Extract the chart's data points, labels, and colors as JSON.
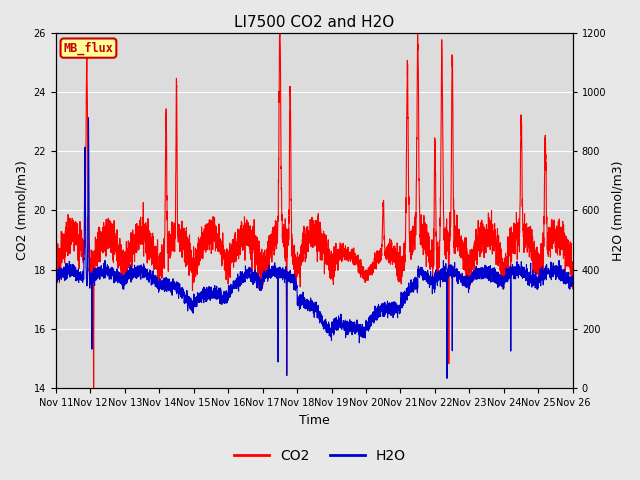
{
  "title": "LI7500 CO2 and H2O",
  "xlabel": "Time",
  "ylabel_left": "CO2 (mmol/m3)",
  "ylabel_right": "H2O (mmol/m3)",
  "co2_color": "#FF0000",
  "h2o_color": "#0000CD",
  "co2_linewidth": 0.8,
  "h2o_linewidth": 0.8,
  "ylim_left": [
    14,
    26
  ],
  "ylim_right": [
    0,
    1200
  ],
  "yticks_left": [
    14,
    16,
    18,
    20,
    22,
    24,
    26
  ],
  "yticks_right": [
    0,
    200,
    400,
    600,
    800,
    1000,
    1200
  ],
  "xtick_labels": [
    "Nov 11",
    "Nov 12",
    "Nov 13",
    "Nov 14",
    "Nov 15",
    "Nov 16",
    "Nov 17",
    "Nov 18",
    "Nov 19",
    "Nov 20",
    "Nov 21",
    "Nov 22",
    "Nov 23",
    "Nov 24",
    "Nov 25",
    "Nov 26"
  ],
  "fig_bg_color": "#E8E8E8",
  "plot_bg_color": "#DCDCDC",
  "annotation_text": "MB_flux",
  "annotation_bg": "#FFFF99",
  "annotation_border": "#CC0000",
  "annotation_text_color": "#CC0000",
  "legend_co2": "CO2",
  "legend_h2o": "H2O",
  "title_fontsize": 11,
  "axis_fontsize": 9,
  "tick_fontsize": 7,
  "days": 15,
  "seed": 123
}
